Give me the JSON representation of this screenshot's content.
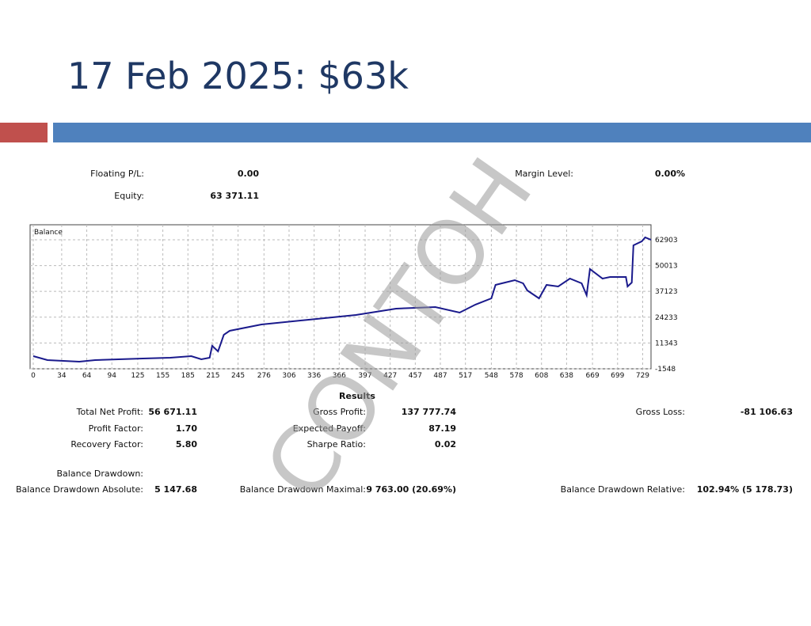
{
  "header": {
    "title": "17 Feb 2025: $63k"
  },
  "account": [
    {
      "label": "Floating P/L:",
      "value": "0.00"
    },
    {
      "label": "Equity:",
      "value": "63 371.11"
    },
    {
      "label": "Margin Level:",
      "value": "0.00%"
    }
  ],
  "chart_data": {
    "type": "line",
    "title": "Balance",
    "color": "#1a1a8c",
    "grid": true,
    "x": [
      0,
      17,
      36,
      55,
      74,
      102,
      131,
      164,
      189,
      201,
      211,
      214,
      221,
      228,
      235,
      273,
      339,
      386,
      434,
      481,
      510,
      529,
      548,
      553,
      576,
      586,
      591,
      605,
      614,
      628,
      642,
      656,
      662,
      666,
      681,
      690,
      709,
      711,
      716,
      718,
      728,
      732,
      739
    ],
    "values": [
      4780,
      2800,
      2400,
      2000,
      2800,
      3200,
      3600,
      4000,
      4780,
      3200,
      4000,
      9920,
      7150,
      15450,
      17430,
      20600,
      23360,
      25340,
      28500,
      29300,
      26500,
      30500,
      33640,
      40360,
      42740,
      41160,
      37600,
      33640,
      40360,
      39570,
      43520,
      41160,
      35230,
      48270,
      43520,
      44300,
      44300,
      39570,
      41550,
      60140,
      62120,
      64100,
      62900
    ],
    "xlim": [
      0,
      739
    ],
    "xticks": [
      0,
      34,
      64,
      94,
      125,
      155,
      185,
      215,
      245,
      276,
      306,
      336,
      366,
      397,
      427,
      457,
      487,
      517,
      548,
      578,
      608,
      638,
      669,
      699,
      729
    ],
    "ylim": [
      -1548,
      70400
    ],
    "yticks": [
      -1548,
      11343,
      24233,
      37123,
      50013,
      62903
    ]
  },
  "results": {
    "title": "Results",
    "stats": [
      {
        "label": "Total Net Profit:",
        "value": "56 671.11"
      },
      {
        "label": "Gross Profit:",
        "value": "137 777.74"
      },
      {
        "label": "Gross Loss:",
        "value": "-81 106.63"
      },
      {
        "label": "Profit Factor:",
        "value": "1.70"
      },
      {
        "label": "Expected Payoff:",
        "value": "87.19"
      },
      {
        "label": "Recovery Factor:",
        "value": "5.80"
      },
      {
        "label": "Sharpe Ratio:",
        "value": "0.02"
      },
      {
        "label": "Balance Drawdown:",
        "value": null
      },
      {
        "label": "Balance Drawdown Absolute:",
        "value": "5 147.68"
      },
      {
        "label": "Balance Drawdown Maximal:",
        "value": "9 763.00 (20.69%)"
      },
      {
        "label": "Balance Drawdown Relative:",
        "value": "102.94% (5 178.73)"
      }
    ]
  },
  "watermark": "CONTOH"
}
